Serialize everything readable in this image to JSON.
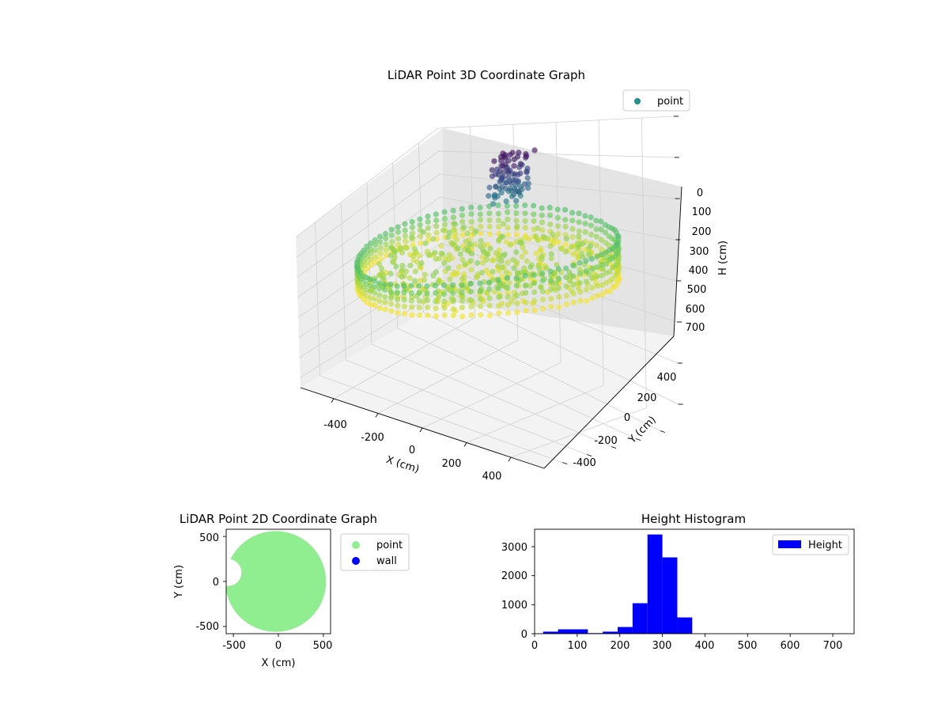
{
  "figure": {
    "background": "#ffffff"
  },
  "chart_data": [
    {
      "type": "scatter",
      "projection": "3d",
      "title": "LiDAR Point 3D Coordinate Graph",
      "xlabel": "X (cm)",
      "ylabel": "Y (cm)",
      "zlabel": "H (cm)",
      "xlim": [
        -550,
        550
      ],
      "ylim": [
        -550,
        550
      ],
      "zlim": [
        750,
        0
      ],
      "zaxis_inverted": true,
      "xticks": [
        -400,
        -200,
        0,
        200,
        400
      ],
      "yticks": [
        -400,
        -200,
        0,
        200,
        400
      ],
      "zticks": [
        0,
        100,
        200,
        300,
        400,
        500,
        600,
        700
      ],
      "colormap": "viridis",
      "legend": [
        {
          "label": "point",
          "color": "#21918c"
        }
      ],
      "legend_position": "top-right",
      "grid": true,
      "wall_ring": {
        "radius": 520,
        "height_range": [
          260,
          360
        ]
      },
      "object_cluster": {
        "x_range": [
          -100,
          50
        ],
        "y_range": [
          150,
          300
        ],
        "height_range": [
          20,
          160
        ]
      }
    },
    {
      "type": "scatter",
      "title": "LiDAR Point 2D Coordinate Graph",
      "xlabel": "X (cm)",
      "ylabel": "Y (cm)",
      "xlim": [
        -580,
        580
      ],
      "ylim": [
        -580,
        580
      ],
      "xticks": [
        -500,
        0,
        500
      ],
      "yticks": [
        500,
        0,
        -500
      ],
      "legend": [
        {
          "label": "point",
          "color": "#90ee90"
        },
        {
          "label": "wall",
          "color": "#0000ff"
        }
      ],
      "legend_position": "outside-right",
      "point_region": {
        "center": [
          -30,
          0
        ],
        "radius": 560
      },
      "notch": {
        "center": [
          -560,
          100
        ],
        "radius": 150
      }
    },
    {
      "type": "bar",
      "subtype": "histogram",
      "title": "Height Histogram",
      "xlim": [
        0,
        750
      ],
      "ylim": [
        0,
        3600
      ],
      "xticks": [
        0,
        100,
        200,
        300,
        400,
        500,
        600,
        700
      ],
      "yticks": [
        0,
        1000,
        2000,
        3000
      ],
      "bar_color": "#0000ff",
      "legend": [
        {
          "label": "Height",
          "color": "#0000ff"
        }
      ],
      "legend_position": "top-right",
      "bins": [
        {
          "x0": 20,
          "x1": 55,
          "count": 70
        },
        {
          "x0": 55,
          "x1": 90,
          "count": 150
        },
        {
          "x0": 90,
          "x1": 125,
          "count": 150
        },
        {
          "x0": 125,
          "x1": 160,
          "count": 20
        },
        {
          "x0": 160,
          "x1": 195,
          "count": 70
        },
        {
          "x0": 195,
          "x1": 230,
          "count": 230
        },
        {
          "x0": 230,
          "x1": 265,
          "count": 1050
        },
        {
          "x0": 265,
          "x1": 300,
          "count": 3420
        },
        {
          "x0": 300,
          "x1": 335,
          "count": 2630
        },
        {
          "x0": 335,
          "x1": 370,
          "count": 560
        }
      ]
    }
  ]
}
